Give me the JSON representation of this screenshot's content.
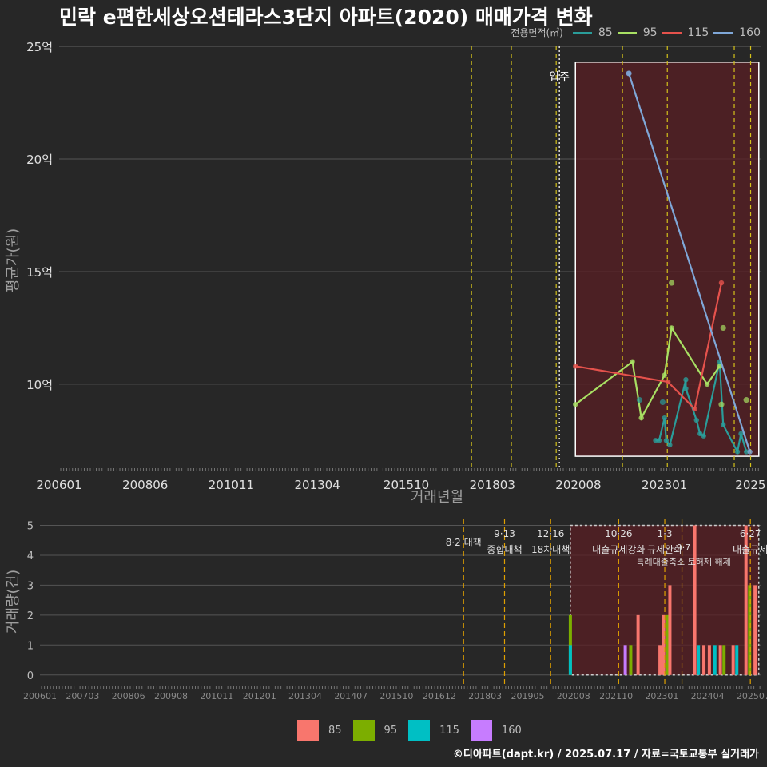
{
  "title": "민락 e편한세상오션테라스3단지 아파트(2020) 매매가격 변화",
  "footer": "©디아파트(dapt.kr) / 2025.07.17 / 자료=국토교통부 실거래가",
  "legend_top": {
    "title": "전용면적(㎡)",
    "items": [
      {
        "label": "85",
        "color": "#2a9d9a"
      },
      {
        "label": "95",
        "color": "#a8e063"
      },
      {
        "label": "115",
        "color": "#e5524c"
      },
      {
        "label": "160",
        "color": "#7fa7d8"
      }
    ]
  },
  "legend_bottom": {
    "items": [
      {
        "label": "85",
        "color": "#f8766d"
      },
      {
        "label": "95",
        "color": "#7cae00"
      },
      {
        "label": "115",
        "color": "#00bfc4"
      },
      {
        "label": "160",
        "color": "#c77cff"
      }
    ]
  },
  "chart_data": [
    {
      "type": "line",
      "title": "민락 e편한세상오션테라스3단지 아파트(2020) 매매가격 변화",
      "xlabel": "거래년월",
      "ylabel": "평균가(원)",
      "x_range": [
        2006.0,
        2025.7
      ],
      "ylim": [
        6.2,
        25.5
      ],
      "x_ticks": [
        {
          "label": "200601",
          "value": 2006.0
        },
        {
          "label": "200806",
          "value": 2008.417
        },
        {
          "label": "201011",
          "value": 2010.833
        },
        {
          "label": "201304",
          "value": 2013.25
        },
        {
          "label": "201510",
          "value": 2015.75
        },
        {
          "label": "201803",
          "value": 2018.167
        },
        {
          "label": "202008",
          "value": 2020.583
        },
        {
          "label": "202301",
          "value": 2023.0
        },
        {
          "label": "2025",
          "value": 2025.417
        }
      ],
      "y_ticks": [
        {
          "label": "10억",
          "value": 10
        },
        {
          "label": "15억",
          "value": 15
        },
        {
          "label": "20억",
          "value": 20
        },
        {
          "label": "25억",
          "value": 25
        }
      ],
      "policy_lines": [
        2017.58,
        2018.7,
        2019.96,
        2021.82,
        2023.08,
        2024.96,
        2025.42
      ],
      "move_in_line": {
        "value": 2020.05,
        "label": "입주"
      },
      "highlight_box": {
        "x": [
          2020.5,
          2025.65
        ],
        "y": [
          6.8,
          24.3
        ]
      },
      "series": [
        {
          "name": "85",
          "color": "#2a9d9a",
          "points": [
            [
              2022.75,
              7.5
            ],
            [
              2022.85,
              7.5
            ],
            [
              2023.0,
              8.5
            ],
            [
              2023.05,
              7.5
            ],
            [
              2023.15,
              7.3
            ],
            [
              2023.6,
              10.2
            ],
            [
              2023.6,
              9.8
            ],
            [
              2023.9,
              8.4
            ],
            [
              2024.0,
              7.8
            ],
            [
              2024.1,
              7.7
            ],
            [
              2024.55,
              11.0
            ],
            [
              2024.65,
              8.2
            ],
            [
              2025.05,
              7.0
            ],
            [
              2025.15,
              7.8
            ],
            [
              2025.3,
              7.0
            ]
          ]
        },
        {
          "name": "95",
          "color": "#a8e063",
          "points": [
            [
              2020.5,
              9.1
            ],
            [
              2022.1,
              11.0
            ],
            [
              2022.35,
              8.5
            ],
            [
              2023.0,
              10.4
            ],
            [
              2023.2,
              12.5
            ],
            [
              2024.2,
              10.0
            ],
            [
              2024.55,
              10.8
            ]
          ]
        },
        {
          "name": "115",
          "color": "#e5524c",
          "points": [
            [
              2020.5,
              10.8
            ],
            [
              2023.1,
              10.1
            ],
            [
              2023.85,
              8.9
            ],
            [
              2024.6,
              14.5
            ]
          ]
        },
        {
          "name": "160",
          "color": "#7fa7d8",
          "points": [
            [
              2022.0,
              23.8
            ],
            [
              2025.4,
              7.0
            ]
          ]
        }
      ],
      "scatter": [
        {
          "series": "85",
          "x": 2022.3,
          "y": 9.3
        },
        {
          "series": "85",
          "x": 2022.95,
          "y": 9.2
        },
        {
          "series": "95",
          "x": 2023.2,
          "y": 14.5
        },
        {
          "series": "95",
          "x": 2024.65,
          "y": 12.5
        },
        {
          "series": "95",
          "x": 2024.6,
          "y": 9.1
        },
        {
          "series": "95",
          "x": 2025.3,
          "y": 9.3
        },
        {
          "series": "160",
          "x": 2022.0,
          "y": 23.8
        }
      ]
    },
    {
      "type": "bar",
      "ylabel": "거래량(건)",
      "x_range": [
        2006.0,
        2025.7
      ],
      "ylim": [
        -0.3,
        5.2
      ],
      "y_ticks": [
        0,
        1,
        2,
        3,
        4,
        5
      ],
      "x_ticks": [
        {
          "label": "200601",
          "value": 2006.0
        },
        {
          "label": "200703",
          "value": 2007.167
        },
        {
          "label": "200806",
          "value": 2008.417
        },
        {
          "label": "200908",
          "value": 2009.583
        },
        {
          "label": "201011",
          "value": 2010.833
        },
        {
          "label": "201201",
          "value": 2012.0
        },
        {
          "label": "201304",
          "value": 2013.25
        },
        {
          "label": "201407",
          "value": 2014.5
        },
        {
          "label": "201510",
          "value": 2015.75
        },
        {
          "label": "201612",
          "value": 2016.917
        },
        {
          "label": "201803",
          "value": 2018.167
        },
        {
          "label": "201905",
          "value": 2019.333
        },
        {
          "label": "202008",
          "value": 2020.583
        },
        {
          "label": "202110",
          "value": 2021.75
        },
        {
          "label": "202301",
          "value": 2023.0
        },
        {
          "label": "202404",
          "value": 2024.25
        },
        {
          "label": "202507",
          "value": 2025.5
        }
      ],
      "policy_lines": [
        {
          "value": 2017.58,
          "label": "8·2 대책",
          "label2": ""
        },
        {
          "value": 2018.7,
          "label": "9·13",
          "label2": "종합대책"
        },
        {
          "value": 2019.96,
          "label": "12·16",
          "label2": "18차대책"
        },
        {
          "value": 2021.82,
          "label": "10·26",
          "label2": "대출규제강화"
        },
        {
          "value": 2023.08,
          "label": "1·3",
          "label2": "규제완화"
        },
        {
          "value": 2023.55,
          "label": "9·7",
          "label2": "특례대출축소 토허제 해제"
        },
        {
          "value": 2025.42,
          "label": "6·27",
          "label2": "대출규제"
        }
      ],
      "highlight_box": {
        "x": [
          2020.5,
          2025.65
        ],
        "y": [
          0,
          5
        ]
      },
      "bars": [
        {
          "x": 2020.5,
          "series": "95",
          "value": 2
        },
        {
          "x": 2020.5,
          "series": "115",
          "value": 1
        },
        {
          "x": 2022.0,
          "series": "160",
          "value": 1
        },
        {
          "x": 2022.15,
          "series": "95",
          "value": 1
        },
        {
          "x": 2022.35,
          "series": "85",
          "value": 2
        },
        {
          "x": 2022.95,
          "series": "85",
          "value": 1
        },
        {
          "x": 2023.05,
          "series": "85",
          "value": 2
        },
        {
          "x": 2023.15,
          "series": "95",
          "value": 2
        },
        {
          "x": 2023.22,
          "series": "85",
          "value": 3
        },
        {
          "x": 2023.9,
          "series": "85",
          "value": 5
        },
        {
          "x": 2024.0,
          "series": "115",
          "value": 1
        },
        {
          "x": 2024.15,
          "series": "85",
          "value": 1
        },
        {
          "x": 2024.3,
          "series": "85",
          "value": 1
        },
        {
          "x": 2024.45,
          "series": "115",
          "value": 1
        },
        {
          "x": 2024.6,
          "series": "85",
          "value": 1
        },
        {
          "x": 2024.7,
          "series": "95",
          "value": 1
        },
        {
          "x": 2024.95,
          "series": "85",
          "value": 1
        },
        {
          "x": 2025.05,
          "series": "115",
          "value": 1
        },
        {
          "x": 2025.3,
          "series": "85",
          "value": 5
        },
        {
          "x": 2025.4,
          "series": "95",
          "value": 3
        },
        {
          "x": 2025.55,
          "series": "85",
          "value": 3
        }
      ]
    }
  ]
}
